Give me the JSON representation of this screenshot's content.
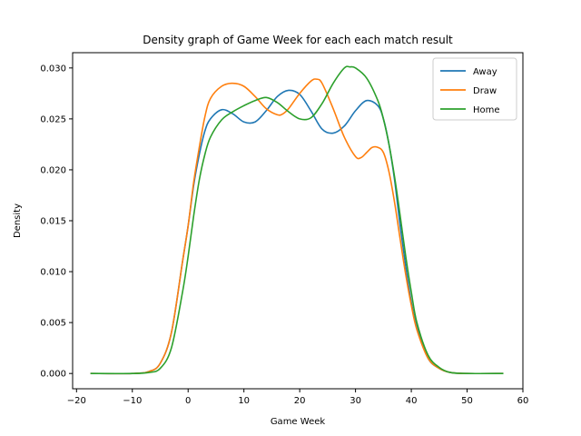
{
  "chart_data": {
    "type": "line",
    "title": "Density graph of Game Week for each each match result",
    "xlabel": "Game Week",
    "ylabel": "Density",
    "xlim": [
      -20.7,
      60.0
    ],
    "ylim": [
      -0.0015,
      0.0315
    ],
    "xticks": [
      -20,
      -10,
      0,
      10,
      20,
      30,
      40,
      50,
      60
    ],
    "yticks": [
      0.0,
      0.005,
      0.01,
      0.015,
      0.02,
      0.025,
      0.03
    ],
    "ytick_labels": [
      "0.000",
      "0.005",
      "0.010",
      "0.015",
      "0.020",
      "0.025",
      "0.030"
    ],
    "grid": false,
    "legend_position": "top-right",
    "series": [
      {
        "name": "Away",
        "color": "#1f77b4",
        "x": [
          -17.5,
          -10,
          -7,
          -5,
          -3,
          -1,
          0,
          1,
          2,
          3,
          4,
          6,
          8,
          10,
          12,
          14,
          16,
          18,
          20,
          22,
          24,
          26,
          28,
          30,
          32,
          34,
          35,
          36,
          37,
          38,
          39,
          40,
          41,
          43,
          45,
          47,
          50,
          56.5
        ],
        "y": [
          0.0,
          0.0,
          0.0002,
          0.001,
          0.004,
          0.011,
          0.0145,
          0.0185,
          0.0215,
          0.0238,
          0.025,
          0.0259,
          0.0255,
          0.0247,
          0.0247,
          0.0258,
          0.0272,
          0.0278,
          0.0274,
          0.0258,
          0.024,
          0.0236,
          0.0243,
          0.0258,
          0.0268,
          0.0263,
          0.025,
          0.0225,
          0.019,
          0.0145,
          0.0105,
          0.007,
          0.0045,
          0.0015,
          0.0005,
          0.0001,
          0.0,
          0.0
        ]
      },
      {
        "name": "Draw",
        "color": "#ff7f0e",
        "x": [
          -17.5,
          -10,
          -7,
          -5,
          -3,
          -1,
          0,
          1,
          2,
          3,
          4,
          6,
          8,
          10,
          12,
          14,
          16,
          17,
          18,
          20,
          22,
          23,
          24,
          26,
          28,
          30,
          31,
          32,
          33,
          34,
          35,
          36,
          37,
          38,
          39,
          40,
          41,
          43,
          45,
          47,
          50,
          56.5
        ],
        "y": [
          0.0,
          0.0,
          0.0002,
          0.001,
          0.004,
          0.011,
          0.0145,
          0.0188,
          0.0222,
          0.0252,
          0.027,
          0.0282,
          0.0285,
          0.0282,
          0.0272,
          0.026,
          0.0254,
          0.0255,
          0.026,
          0.0275,
          0.0287,
          0.0289,
          0.0285,
          0.026,
          0.0232,
          0.0213,
          0.0212,
          0.0217,
          0.0222,
          0.0222,
          0.0217,
          0.0198,
          0.0168,
          0.0132,
          0.0097,
          0.0067,
          0.0043,
          0.0015,
          0.0005,
          0.0001,
          0.0,
          0.0
        ]
      },
      {
        "name": "Home",
        "color": "#2ca02c",
        "x": [
          -17.5,
          -10,
          -7,
          -5,
          -3,
          -1,
          0,
          1,
          2,
          3,
          4,
          6,
          8,
          10,
          12,
          14,
          16,
          18,
          20,
          22,
          24,
          26,
          28,
          29,
          30,
          32,
          34,
          35,
          36,
          37,
          38,
          39,
          40,
          41,
          43,
          45,
          47,
          50,
          56.5
        ],
        "y": [
          0.0,
          0.0,
          0.0001,
          0.0005,
          0.0025,
          0.008,
          0.0115,
          0.0155,
          0.019,
          0.0215,
          0.0232,
          0.0249,
          0.0257,
          0.0263,
          0.0268,
          0.0271,
          0.0266,
          0.0257,
          0.025,
          0.0251,
          0.0265,
          0.0285,
          0.03,
          0.0301,
          0.03,
          0.029,
          0.0268,
          0.025,
          0.0225,
          0.0193,
          0.0155,
          0.0115,
          0.008,
          0.005,
          0.0018,
          0.0006,
          0.0001,
          0.0,
          0.0
        ]
      }
    ]
  }
}
